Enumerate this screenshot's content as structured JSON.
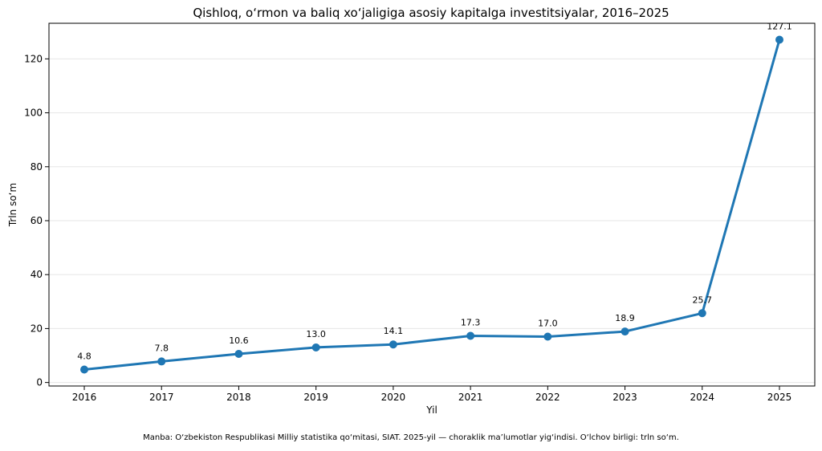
{
  "chart_data": {
    "type": "line",
    "title": "Qishloq, o‘rmon va baliq xo‘jaligiga asosiy kapitalga investitsiyalar, 2016–2025",
    "xlabel": "Yil",
    "ylabel": "Trln so‘m",
    "x": [
      "2016",
      "2017",
      "2018",
      "2019",
      "2020",
      "2021",
      "2022",
      "2023",
      "2024",
      "2025"
    ],
    "series": [
      {
        "values": [
          4.8,
          7.8,
          10.6,
          13.0,
          14.1,
          17.3,
          17.0,
          18.9,
          25.7,
          127.1
        ]
      }
    ],
    "data_labels": [
      "4.8",
      "7.8",
      "10.6",
      "13.0",
      "14.1",
      "17.3",
      "17.0",
      "18.9",
      "25.7",
      "127.1"
    ],
    "y_ticks": [
      0,
      20,
      40,
      60,
      80,
      100,
      120
    ],
    "ylim": [
      -1.3,
      133.2
    ],
    "grid": "horizontal",
    "line_color": "#1f77b4"
  },
  "footer": "Manba: O‘zbekiston Respublikasi Milliy statistika qo‘mitasi, SIAT. 2025-yil — choraklik ma’lumotlar yig‘indisi. O‘lchov birligi: trln so‘m."
}
